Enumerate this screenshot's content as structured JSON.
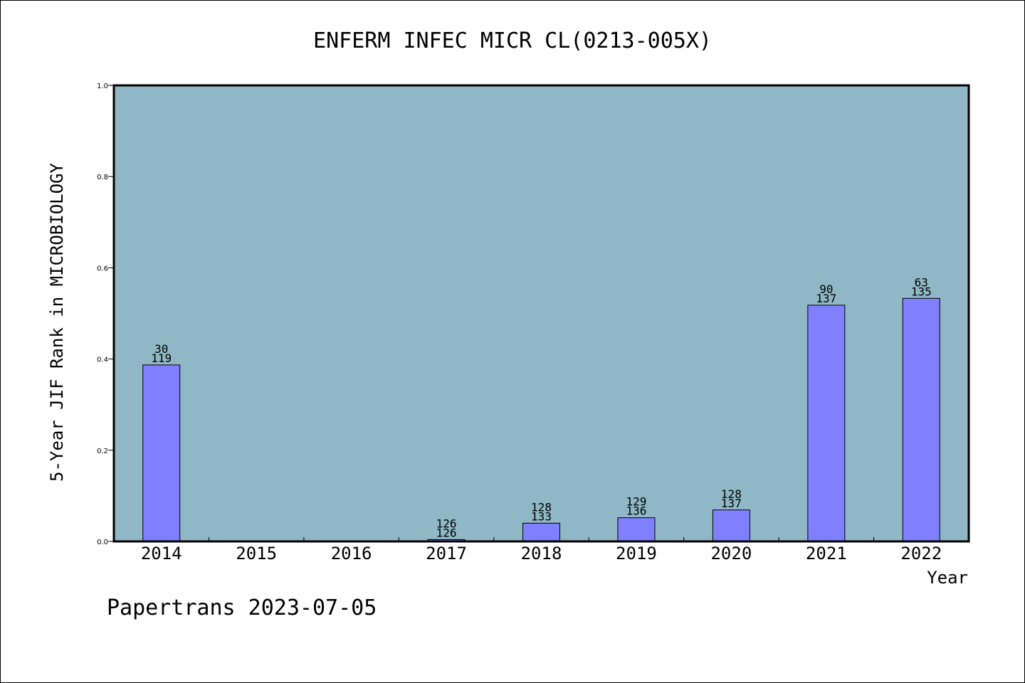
{
  "colors": {
    "plot_background": "#8fb7c5",
    "bar_fill": "#8080ff",
    "bar_stroke": "#000000",
    "page_background": "#ffffff"
  },
  "footer": {
    "text": "Papertrans 2023-07-05"
  },
  "chart_data": {
    "type": "bar",
    "title": "ENFERM INFEC MICR CL(0213-005X)",
    "xlabel": "Year",
    "ylabel": "5-Year JIF Rank in MICROBIOLOGY",
    "ylim": [
      0,
      1.0
    ],
    "yticks": [
      "0.0",
      "0.2",
      "0.4",
      "0.6",
      "0.8",
      "1.0"
    ],
    "grid": false,
    "categories": [
      "2014",
      "2015",
      "2016",
      "2017",
      "2018",
      "2019",
      "2020",
      "2021",
      "2022"
    ],
    "values": [
      0.387,
      null,
      null,
      0.004,
      0.04,
      0.052,
      0.069,
      0.518,
      0.533
    ],
    "rank_labels": [
      "30",
      "",
      "",
      "126",
      "128",
      "129",
      "128",
      "90",
      "63"
    ],
    "total_labels": [
      "119",
      "",
      "",
      "126",
      "133",
      "136",
      "137",
      "137",
      "135"
    ]
  }
}
